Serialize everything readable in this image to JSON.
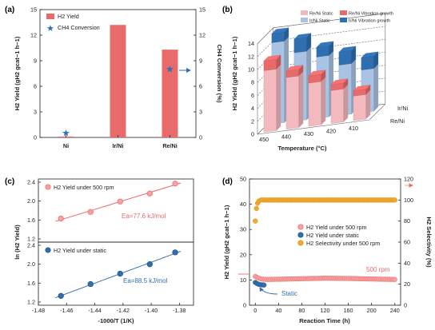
{
  "panels": [
    "(a)",
    "(b)",
    "(c)",
    "(d)"
  ],
  "chart_data": [
    {
      "panel": "(a)",
      "type": "bar",
      "categories": [
        "Ni",
        "Ir/Ni",
        "Re/Ni"
      ],
      "series": [
        {
          "name": "H2 Yield",
          "values": [
            0.1,
            13.2,
            10.3
          ]
        },
        {
          "name": "CH4 Conversion",
          "values": [
            0.5,
            null,
            8.0
          ],
          "marker": "star"
        }
      ],
      "ylabel": "H2 Yield (gH2 gcat−1 h−1)",
      "y2label": "CH4 Conversion (%)",
      "ylim": [
        0,
        15
      ],
      "y2lim": [
        0,
        15
      ],
      "yticks": [
        0,
        3,
        6,
        9,
        12,
        15
      ],
      "legend_position": "top-left",
      "colors": {
        "bar": "#e96a6a",
        "star": "#2f6fb0"
      }
    },
    {
      "panel": "(b)",
      "type": "bar",
      "categories": [
        "450",
        "440",
        "430",
        "420",
        "410"
      ],
      "series": [
        {
          "name": "Re/Ni Static",
          "values": [
            9.5,
            8.0,
            6.7,
            5.1,
            3.8
          ]
        },
        {
          "name": "Re/Ni Vibration growth",
          "values": [
            11.0,
            9.0,
            7.8,
            6.0,
            4.6
          ]
        },
        {
          "name": "Ir/Ni Static",
          "values": [
            12.6,
            10.6,
            9.5,
            7.8,
            6.6
          ]
        },
        {
          "name": "Ir/Ni Vibration growth",
          "values": [
            14.0,
            12.7,
            11.0,
            9.8,
            8.5
          ]
        }
      ],
      "depth_labels": [
        "Ir/Ni",
        "Re/Ni"
      ],
      "ylabel": "H2 Yield (gH2 gcat−1 h−1)",
      "xlabel": "Temperature (°C)",
      "ylim": [
        0,
        14
      ],
      "yticks": [
        0,
        2,
        4,
        6,
        8,
        10,
        12,
        14
      ],
      "legend_position": "top",
      "colors": {
        "re_static": "#f4b9bf",
        "re_vib": "#e96a6a",
        "ir_static": "#a9c3e4",
        "ir_vib": "#2f6fb0"
      }
    },
    {
      "panel": "(c)",
      "type": "scatter",
      "ylabel": "ln (H2 Yield)",
      "xlabel": "-1000/T (1/K)",
      "xlim": [
        -1.48,
        -1.37
      ],
      "xticks": [
        "-1.48",
        "-1.46",
        "-1.44",
        "-1.42",
        "-1.40",
        "-1.38"
      ],
      "subplots": [
        {
          "name": "H2 Yield under 500 rpm",
          "x": [
            -1.464,
            -1.443,
            -1.422,
            -1.401,
            -1.383
          ],
          "y": [
            1.63,
            1.77,
            1.99,
            2.16,
            2.37
          ],
          "ylim": [
            1.2,
            2.4
          ],
          "yticks": [
            "1.2",
            "1.6",
            "2.0",
            "2.4"
          ],
          "annotation": "Ea=77.6 kJ/mol",
          "color": "#e96a6a"
        },
        {
          "name": "H2 Yield under static",
          "x": [
            -1.464,
            -1.443,
            -1.422,
            -1.401,
            -1.383
          ],
          "y": [
            1.33,
            1.58,
            1.8,
            2.0,
            2.25
          ],
          "ylim": [
            1.2,
            2.4
          ],
          "yticks": [
            "1.2",
            "1.6",
            "2.0",
            "2.4"
          ],
          "annotation": "Ea=88.5 kJ/mol",
          "color": "#2f6fb0"
        }
      ]
    },
    {
      "panel": "(d)",
      "type": "line",
      "xlabel": "Reaction Time (h)",
      "ylabel": "H2 Yield (gH2 gcat−1 h−1)",
      "y2label": "H2 Selectivity (%)",
      "xlim": [
        -10,
        250
      ],
      "xticks": [
        0,
        40,
        80,
        120,
        160,
        200,
        240
      ],
      "ylim": [
        0,
        50
      ],
      "yticks": [
        0,
        10,
        20,
        30,
        40,
        50
      ],
      "y2lim": [
        0,
        120
      ],
      "y2ticks": [
        0,
        20,
        40,
        60,
        80,
        100,
        120
      ],
      "series": [
        {
          "name": "H2 Yield under 500 rpm",
          "x": [
            0,
            3,
            6,
            10,
            20,
            40,
            80,
            120,
            160,
            200,
            240
          ],
          "y": [
            11.4,
            11.0,
            10.7,
            10.4,
            10.2,
            10.3,
            10.5,
            10.7,
            10.6,
            10.4,
            10.2
          ],
          "color": "#e96a6a"
        },
        {
          "name": "H2 Yield under static",
          "x": [
            0,
            3,
            6,
            10,
            15
          ],
          "y": [
            9.0,
            8.6,
            8.3,
            8.1,
            8.0
          ],
          "color": "#2f6fb0"
        },
        {
          "name": "H2 Selectivity under 500 rpm",
          "x": [
            0,
            2,
            4,
            6,
            10,
            20,
            40,
            80,
            120,
            160,
            200,
            240
          ],
          "y2": [
            80,
            92,
            97,
            99,
            100,
            100,
            100,
            100,
            100,
            100,
            100,
            100
          ],
          "color": "#f2a92c"
        }
      ],
      "annotations": [
        "500 rpm",
        "Static"
      ],
      "legend_position": "center-right"
    }
  ]
}
